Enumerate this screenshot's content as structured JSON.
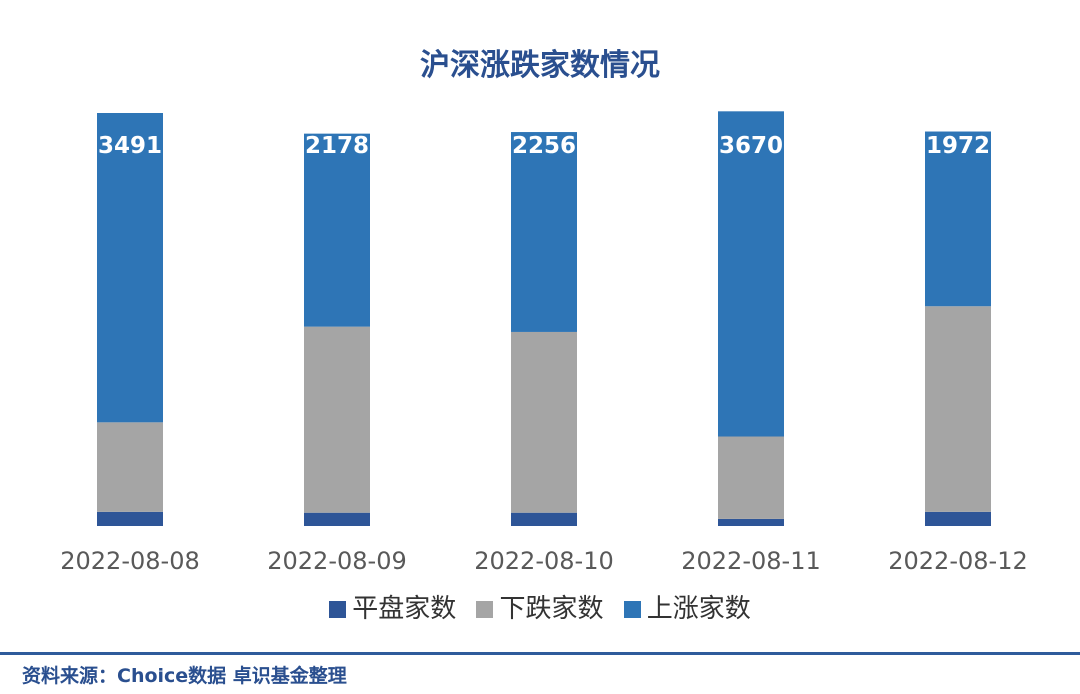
{
  "chart_data": {
    "type": "bar",
    "stacked": true,
    "title": "沪深涨跌家数情况",
    "categories": [
      "2022-08-08",
      "2022-08-09",
      "2022-08-10",
      "2022-08-11",
      "2022-08-12"
    ],
    "series": [
      {
        "name": "平盘家数",
        "color": "#2e5597",
        "values": [
          160,
          150,
          150,
          80,
          160
        ]
      },
      {
        "name": "下跌家数",
        "color": "#a5a5a5",
        "values": [
          1010,
          2100,
          2040,
          930,
          2320
        ]
      },
      {
        "name": "上涨家数",
        "color": "#2e75b6",
        "values": [
          3491,
          2178,
          2256,
          3670,
          1972
        ]
      }
    ],
    "data_labels": [
      "3491",
      "2178",
      "2256",
      "3670",
      "1972"
    ],
    "ylim": [
      0,
      4661
    ],
    "grid": false,
    "legend_position": "bottom"
  },
  "source_text": "资料来源：Choice数据  卓识基金整理"
}
